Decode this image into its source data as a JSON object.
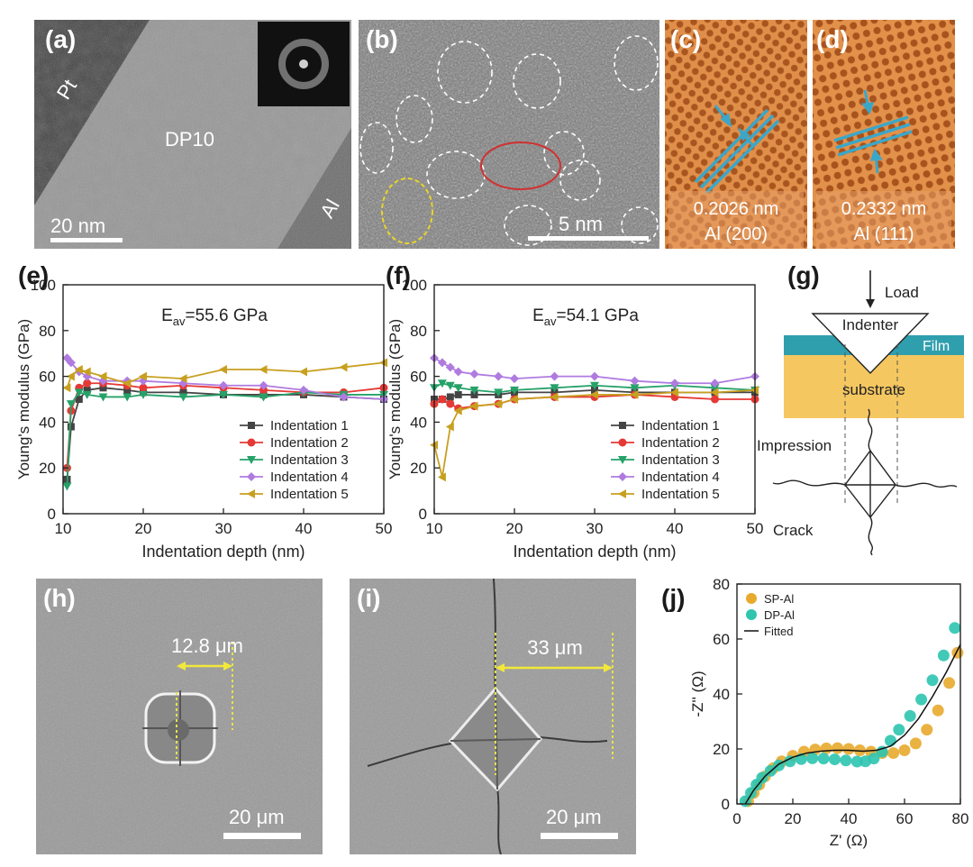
{
  "panels": {
    "a": {
      "label": "(a)",
      "material": "DP10",
      "pt_label": "Pt",
      "al_label": "Al",
      "scalebar": "20 nm"
    },
    "b": {
      "label": "(b)",
      "scalebar": "5 nm"
    },
    "c": {
      "label": "(c)",
      "spacing": "0.2026  nm",
      "plane": "Al (200)"
    },
    "d": {
      "label": "(d)",
      "spacing": "0.2332 nm",
      "plane": "Al (111)"
    },
    "e": {
      "label": "(e)"
    },
    "f": {
      "label": "(f)"
    },
    "g": {
      "label": "(g)",
      "load": "Load",
      "indenter": "Indenter",
      "film": "Film",
      "substrate": "substrate",
      "impression": "Impression",
      "crack": "Crack"
    },
    "h": {
      "label": "(h)",
      "measure": "12.8 μm",
      "scalebar": "20 μm"
    },
    "i": {
      "label": "(i)",
      "measure": "33 μm",
      "scalebar": "20 μm"
    },
    "j": {
      "label": "(j)"
    }
  },
  "colors": {
    "indent1": "#444444",
    "indent2": "#e53935",
    "indent3": "#26a269",
    "indent4": "#b07be0",
    "indent5": "#c8a020",
    "sp_al": "#e8aa2c",
    "dp_al": "#2ec4b0",
    "film": "#2f9fae",
    "substrate": "#f5c760"
  },
  "chart_data": [
    {
      "id": "e",
      "type": "line",
      "annotation": "E_av=55.6 GPa",
      "annotation_main": "E",
      "annotation_sub": "av",
      "annotation_rest": "=55.6 GPa",
      "xlabel": "Indentation depth (nm)",
      "ylabel": "Young's modulus (GPa)",
      "xlim": [
        10,
        50
      ],
      "ylim": [
        0,
        100
      ],
      "xticks": [
        "10",
        "20",
        "30",
        "40",
        "50"
      ],
      "yticks": [
        "0",
        "20",
        "40",
        "60",
        "80",
        "100"
      ],
      "legend_position": "lower-right",
      "x": [
        10.5,
        11,
        12,
        13,
        15,
        18,
        20,
        25,
        30,
        35,
        40,
        45,
        50
      ],
      "series": [
        {
          "name": "Indentation 1",
          "values": [
            15,
            38,
            50,
            54,
            55,
            54,
            53,
            53,
            52,
            52,
            52,
            51,
            50
          ]
        },
        {
          "name": "Indentation 2",
          "values": [
            20,
            45,
            55,
            57,
            57,
            56,
            55,
            56,
            55,
            54,
            53,
            53,
            55
          ]
        },
        {
          "name": "Indentation 3",
          "values": [
            12,
            48,
            53,
            52,
            51,
            51,
            52,
            51,
            52,
            51,
            53,
            52,
            52
          ]
        },
        {
          "name": "Indentation 4",
          "values": [
            68,
            66,
            62,
            60,
            58,
            58,
            58,
            57,
            56,
            56,
            54,
            51,
            50
          ]
        },
        {
          "name": "Indentation 5",
          "values": [
            55,
            60,
            63,
            62,
            60,
            57,
            60,
            59,
            63,
            63,
            62,
            64,
            66
          ]
        }
      ]
    },
    {
      "id": "f",
      "type": "line",
      "annotation": "E_av=54.1 GPa",
      "annotation_main": "E",
      "annotation_sub": "av",
      "annotation_rest": "=54.1 GPa",
      "xlabel": "Indentation depth (nm)",
      "ylabel": "Young's modulus (GPa)",
      "xlim": [
        10,
        50
      ],
      "ylim": [
        0,
        100
      ],
      "xticks": [
        "10",
        "20",
        "30",
        "40",
        "50"
      ],
      "yticks": [
        "0",
        "20",
        "40",
        "60",
        "80",
        "100"
      ],
      "legend_position": "lower-right",
      "x": [
        10,
        11,
        12,
        13,
        15,
        18,
        20,
        25,
        30,
        35,
        40,
        45,
        50
      ],
      "series": [
        {
          "name": "Indentation 1",
          "values": [
            50,
            50,
            51,
            52,
            52,
            52,
            53,
            53,
            54,
            53,
            53,
            53,
            53
          ]
        },
        {
          "name": "Indentation 2",
          "values": [
            48,
            50,
            48,
            46,
            47,
            48,
            50,
            51,
            51,
            52,
            51,
            50,
            50
          ]
        },
        {
          "name": "Indentation 3",
          "values": [
            55,
            57,
            56,
            55,
            54,
            53,
            54,
            55,
            56,
            55,
            56,
            55,
            54
          ]
        },
        {
          "name": "Indentation 4",
          "values": [
            68,
            66,
            64,
            62,
            61,
            60,
            59,
            60,
            60,
            58,
            57,
            57,
            60
          ]
        },
        {
          "name": "Indentation 5",
          "values": [
            30,
            16,
            38,
            45,
            47,
            48,
            50,
            51,
            52,
            52,
            53,
            53,
            54
          ]
        }
      ]
    },
    {
      "id": "j",
      "type": "scatter",
      "xlabel": "Z' (Ω)",
      "ylabel": "-Z'' (Ω)",
      "xlim": [
        0,
        80
      ],
      "ylim": [
        0,
        80
      ],
      "xticks": [
        "0",
        "20",
        "40",
        "60",
        "80"
      ],
      "yticks": [
        "0",
        "20",
        "40",
        "60",
        "80"
      ],
      "legend_position": "top-left",
      "series": [
        {
          "name": "SP-Al",
          "x": [
            4,
            6,
            8,
            10,
            13,
            16,
            20,
            24,
            28,
            32,
            36,
            40,
            44,
            48,
            52,
            56,
            60,
            64,
            68,
            72,
            76,
            79
          ],
          "y": [
            1,
            4,
            7,
            10,
            13,
            15.5,
            17.5,
            19,
            19.8,
            20.2,
            20.3,
            20,
            19.5,
            19,
            18.5,
            18.5,
            19.5,
            22,
            27,
            34,
            44,
            55
          ]
        },
        {
          "name": "DP-Al",
          "x": [
            3,
            5,
            7,
            9,
            12,
            15,
            19,
            23,
            27,
            31,
            35,
            39,
            43,
            46,
            49,
            52,
            55,
            58,
            62,
            66,
            70,
            74,
            78
          ],
          "y": [
            1,
            4,
            7,
            9.5,
            12,
            14,
            15.5,
            16.3,
            16.6,
            16.5,
            16.2,
            15.8,
            15.4,
            15.5,
            16.5,
            19,
            23,
            27,
            32,
            38,
            45,
            54,
            64
          ]
        },
        {
          "name": "Fitted",
          "x": [
            3,
            6,
            10,
            15,
            20,
            25,
            30,
            35,
            40,
            45,
            50,
            55,
            60,
            65,
            70,
            75,
            80
          ],
          "y": [
            0,
            5,
            10,
            14.5,
            17,
            18.5,
            19.2,
            19.5,
            19.5,
            19.2,
            19.5,
            21,
            25,
            31,
            39,
            48,
            58
          ]
        }
      ]
    }
  ]
}
